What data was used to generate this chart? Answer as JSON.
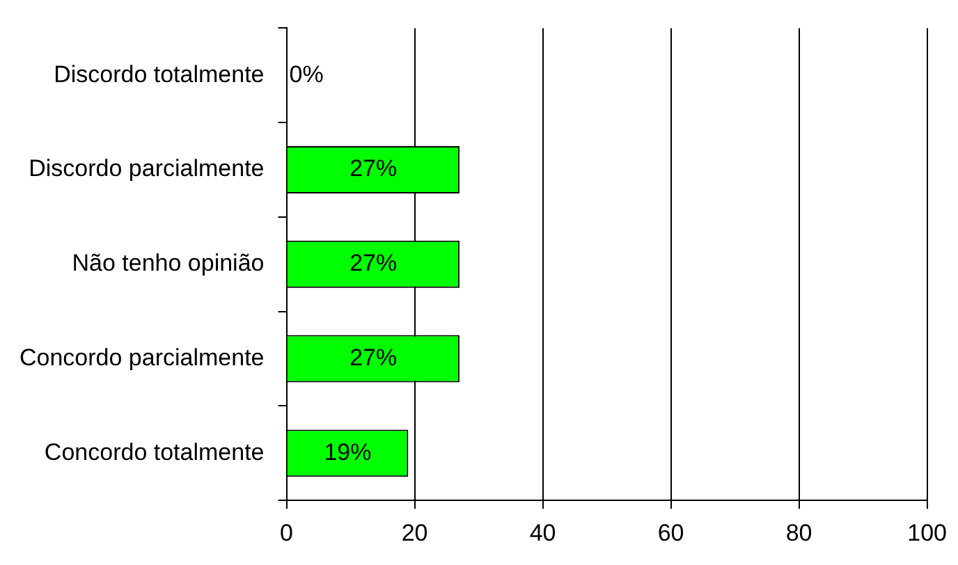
{
  "chart_data": {
    "type": "bar",
    "orientation": "horizontal",
    "categories": [
      "Discordo totalmente",
      "Discordo parcialmente",
      "Não tenho opinião",
      "Concordo parcialmente",
      "Concordo totalmente"
    ],
    "values": [
      0,
      27,
      27,
      27,
      19
    ],
    "value_labels": [
      "0%",
      "27%",
      "27%",
      "27%",
      "19%"
    ],
    "color": "#00ff00",
    "xlim": [
      0,
      100
    ],
    "xticks": [
      0,
      20,
      40,
      60,
      80,
      100
    ],
    "grid": "x",
    "legend": false
  }
}
